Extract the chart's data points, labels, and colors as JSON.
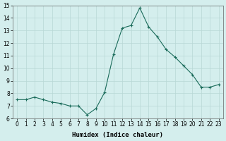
{
  "x": [
    0,
    1,
    2,
    3,
    4,
    5,
    6,
    7,
    8,
    9,
    10,
    11,
    12,
    13,
    14,
    15,
    16,
    17,
    18,
    19,
    20,
    21,
    22,
    23
  ],
  "y": [
    7.5,
    7.5,
    7.7,
    7.5,
    7.3,
    7.2,
    7.0,
    7.0,
    6.3,
    6.8,
    8.1,
    11.1,
    13.2,
    13.4,
    14.8,
    13.3,
    12.5,
    11.5,
    10.9,
    10.2,
    9.5,
    8.5,
    8.5,
    8.7
  ],
  "line_color": "#1a6b5a",
  "marker": "+",
  "marker_size": 3,
  "marker_lw": 0.8,
  "line_width": 0.8,
  "bg_color": "#d4eeed",
  "grid_color": "#b8d8d5",
  "xlabel": "Humidex (Indice chaleur)",
  "ylim": [
    6,
    15
  ],
  "xlim": [
    -0.5,
    23.5
  ],
  "yticks": [
    6,
    7,
    8,
    9,
    10,
    11,
    12,
    13,
    14,
    15
  ],
  "xticks": [
    0,
    1,
    2,
    3,
    4,
    5,
    6,
    7,
    8,
    9,
    10,
    11,
    12,
    13,
    14,
    15,
    16,
    17,
    18,
    19,
    20,
    21,
    22,
    23
  ],
  "xlabel_fontsize": 6.5,
  "tick_fontsize": 5.5
}
